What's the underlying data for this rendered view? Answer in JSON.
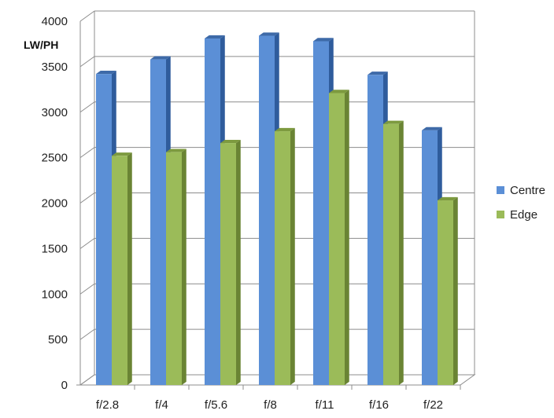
{
  "chart_data": {
    "type": "bar",
    "title": "",
    "xlabel": "",
    "ylabel": "LW/PH",
    "ylim": [
      0,
      4000
    ],
    "yticks": [
      "0",
      "500",
      "1000",
      "1500",
      "2000",
      "2500",
      "3000",
      "3500",
      "4000"
    ],
    "categories": [
      "f/2.8",
      "f/4",
      "f/5.6",
      "f/8",
      "f/11",
      "f/16",
      "f/22"
    ],
    "series": [
      {
        "name": "Centre",
        "values": [
          3420,
          3580,
          3810,
          3840,
          3780,
          3410,
          2800
        ]
      },
      {
        "name": "Edge",
        "values": [
          2520,
          2560,
          2660,
          2790,
          3210,
          2870,
          2030
        ]
      }
    ],
    "grid": true,
    "legend": "right",
    "colors": {
      "Centre": {
        "front": "#5b8fd6",
        "side": "#2f5c9c",
        "top": "#3e6aa8"
      },
      "Edge": {
        "front": "#9bbb59",
        "side": "#6a8434",
        "top": "#7d9a3f"
      }
    }
  }
}
